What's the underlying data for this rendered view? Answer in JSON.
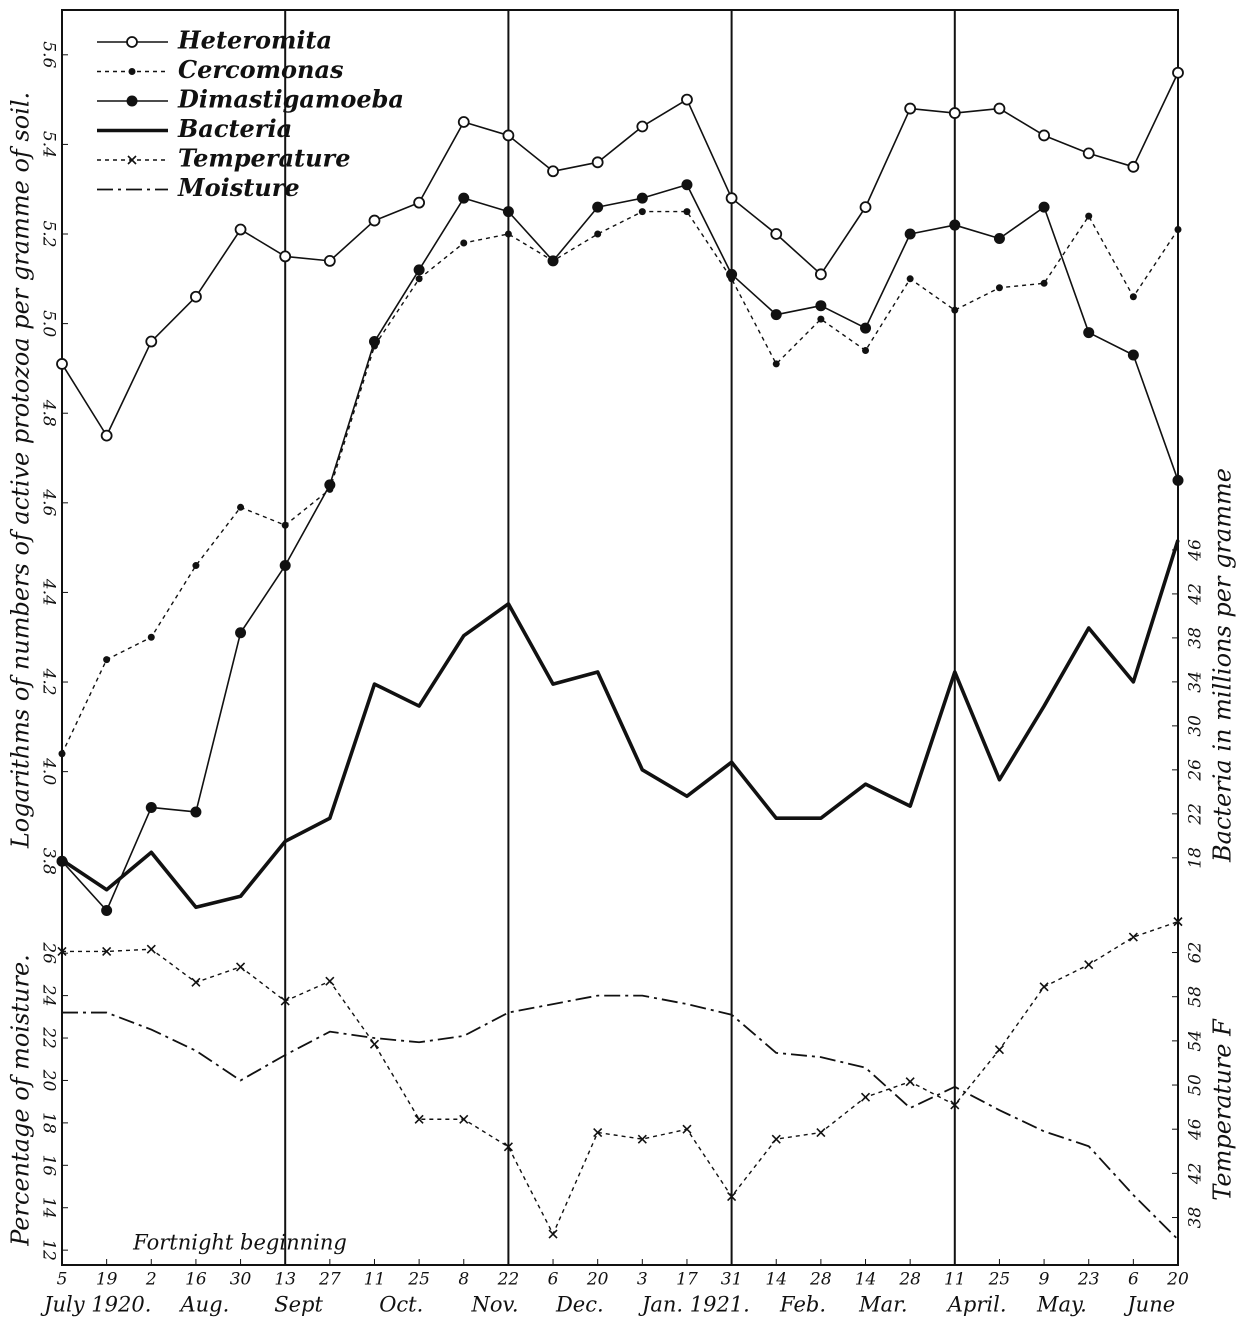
{
  "chart_data": [
    {
      "type": "line",
      "y_label": "Logarithms of numbers of active protozoa per gramme of soil.",
      "y2_label": "Bacteria in millions per gramme",
      "ylim": [
        3.68,
        5.7
      ],
      "yticks": [
        3.8,
        {
          "value": 4,
          "label": "4.0"
        },
        4.2,
        4.4,
        4.6,
        4.8,
        {
          "value": 5,
          "label": "5.0"
        },
        5.2,
        5.4,
        5.6
      ],
      "y2lim": [
        12.8,
        95.1
      ],
      "y2ticks": [
        18,
        22,
        26,
        30,
        34,
        38,
        42,
        46
      ],
      "series": [
        {
          "name": "Heteromita",
          "color": "#111111",
          "style": "solid",
          "marker": "open-circle",
          "values": [
            4.91,
            4.75,
            4.96,
            5.06,
            5.21,
            5.15,
            5.14,
            5.23,
            5.27,
            5.45,
            5.42,
            5.34,
            5.36,
            5.44,
            5.5,
            5.28,
            5.2,
            5.11,
            5.26,
            5.48,
            5.47,
            5.48,
            5.42,
            5.38,
            5.35,
            5.56
          ]
        },
        {
          "name": "Cercomonas",
          "color": "#111111",
          "style": "dotted",
          "marker": "dot",
          "values": [
            4.04,
            4.25,
            4.3,
            4.46,
            4.59,
            4.55,
            4.63,
            4.95,
            5.1,
            5.18,
            5.2,
            5.14,
            5.2,
            5.25,
            5.25,
            5.1,
            4.91,
            5.01,
            4.94,
            5.1,
            5.03,
            5.08,
            5.09,
            5.24,
            5.06,
            5.21
          ]
        },
        {
          "name": "Dimastigamoeba",
          "color": "#111111",
          "style": "solid",
          "marker": "filled-circle",
          "values": [
            3.8,
            3.69,
            3.92,
            3.91,
            4.31,
            4.46,
            4.64,
            4.96,
            5.12,
            5.28,
            5.25,
            5.14,
            5.26,
            5.28,
            5.31,
            5.11,
            5.02,
            5.04,
            4.99,
            5.2,
            5.22,
            5.19,
            5.26,
            4.98,
            4.93,
            4.65
          ]
        },
        {
          "name": "Bacteria",
          "color": "#111111",
          "style": "thick",
          "marker": "none",
          "axis": "y2",
          "values": [
            17.8,
            15.1,
            18.5,
            13.5,
            14.5,
            19.5,
            21.6,
            33.8,
            31.8,
            38.2,
            41.1,
            33.8,
            34.9,
            26,
            23.6,
            26.7,
            21.6,
            21.6,
            24.7,
            22.7,
            34.9,
            25.1,
            31.8,
            38.9,
            34,
            46.9
          ]
        }
      ]
    },
    {
      "type": "line",
      "y_label": "Percentage of moisture.",
      "y2_label": "Temperature F",
      "annotation": "Fortnight beginning",
      "categories": [
        "5",
        "19",
        "2",
        "16",
        "30",
        "13",
        "27",
        "11",
        "25",
        "8",
        "22",
        "6",
        "20",
        "3",
        "17",
        "31",
        "14",
        "28",
        "14",
        "28",
        "11",
        "25",
        "9",
        "23",
        "6",
        "20"
      ],
      "month_labels": [
        "July 1920.",
        "Aug.",
        "Sept",
        "Oct.",
        "Nov.",
        "Dec.",
        "Jan. 1921.",
        "Feb.",
        "Mar.",
        "April.",
        "May.",
        "June"
      ],
      "ylim": [
        11.3,
        27.8
      ],
      "yticks": [
        12,
        14,
        16,
        18,
        20,
        22,
        24,
        26
      ],
      "y2lim": [
        33.7,
        65.4
      ],
      "y2ticks": [
        38,
        42,
        46,
        50,
        54,
        58,
        62
      ],
      "series": [
        {
          "name": "Temperature",
          "color": "#111111",
          "style": "dotted",
          "marker": "cross",
          "axis": "y2",
          "values": [
            62.1,
            62.1,
            62.3,
            59.3,
            60.7,
            57.6,
            59.4,
            53.7,
            46.9,
            46.9,
            44.4,
            36.5,
            45.7,
            45.1,
            46,
            39.9,
            45.1,
            45.7,
            48.9,
            50.3,
            48.2,
            53.2,
            58.9,
            60.9,
            63.4,
            64.8
          ]
        },
        {
          "name": "Moisture",
          "color": "#111111",
          "style": "dash-dot",
          "marker": "none",
          "values": [
            23.2,
            23.2,
            22.4,
            21.4,
            20,
            21.2,
            22.3,
            22,
            21.8,
            22.1,
            23.2,
            23.6,
            24,
            24,
            23.6,
            23.1,
            21.3,
            21.1,
            20.6,
            18.7,
            19.7,
            18.6,
            17.6,
            16.9,
            14.6,
            12.5
          ]
        }
      ]
    }
  ]
}
